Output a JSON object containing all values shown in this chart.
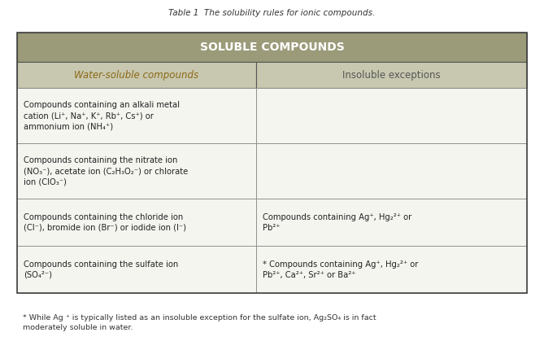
{
  "title": "Table 1  The solubility rules for ionic compounds.",
  "header_text": "SOLUBLE COMPOUNDS",
  "header_bg": "#8B8B6B",
  "subheader_bg": "#C8C8B0",
  "col1_header": "Water-soluble compounds",
  "col2_header": "Insoluble exceptions",
  "rows": [
    {
      "col1": "Compounds containing an alkali metal\ncation (Li⁺, Na⁺, K⁺, Rb⁺, Cs⁺) or\nammonium ion (NH₄⁺)",
      "col2": ""
    },
    {
      "col1": "Compounds containing the nitrate ion\n(NO₃⁻), acetate ion (C₂H₃O₂⁻) or chlorate\nion (ClO₃⁻)",
      "col2": ""
    },
    {
      "col1": "Compounds containing the chloride ion\n(Cl⁻), bromide ion (Br⁻) or iodide ion (I⁻)",
      "col2": "Compounds containing Ag⁺, Hg₂²⁺ or\nPb²⁺"
    },
    {
      "col1": "Compounds containing the sulfate ion\n(SO₄²⁻)",
      "col2": "* Compounds containing Ag⁺, Hg₂²⁺ or\nPb²⁺, Ca²⁺, Sr²⁺ or Ba²⁺"
    }
  ],
  "footnote": "* While Ag ⁺ is typically listed as an insoluble exception for the sulfate ion, Ag₂SO₄ is in fact\nmoderately soluble in water.",
  "table_border": "#555555",
  "cell_bg": "#F5F5F0",
  "text_color": "#2a2a2a",
  "header_text_color": "#FFFFFF",
  "subheader_text_color": "#8B6914",
  "fig_bg": "#FFFFFF"
}
